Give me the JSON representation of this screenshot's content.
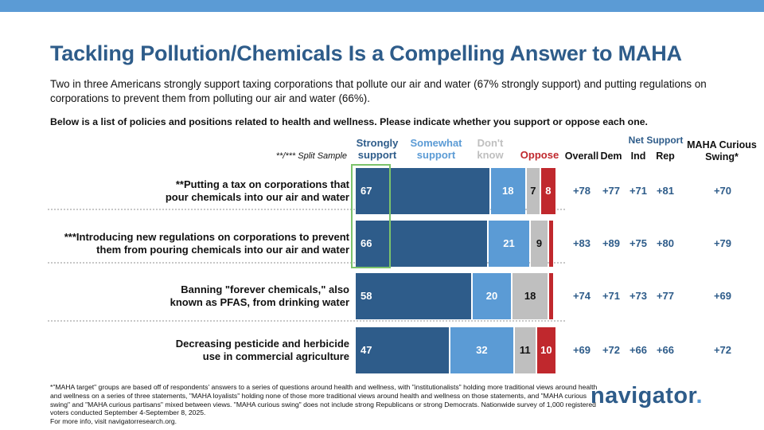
{
  "title": "Tackling Pollution/Chemicals Is a Compelling Answer to MAHA",
  "subtitle": "Two in three Americans strongly support taxing corporations that pollute our air and water (67% strongly support) and putting regulations on corporations to prevent them from polluting our air and water (66%).",
  "question": "Below is a list of policies and positions related to health and wellness. Please indicate whether you support or oppose each one.",
  "split_note": "**/*** Split Sample",
  "colors": {
    "strong": "#2e5c8a",
    "somewhat": "#5b9bd5",
    "dontknow": "#bfbfbf",
    "oppose": "#c0282d",
    "highlight": "#7cc36b"
  },
  "headers": {
    "strong": [
      "Strongly",
      "support"
    ],
    "somewhat": [
      "Somewhat",
      "support"
    ],
    "dontknow": [
      "Don't",
      "know"
    ],
    "oppose": "Oppose",
    "overall": "Overall",
    "dem": "Dem",
    "ind": "Ind",
    "rep": "Rep",
    "net_support": "Net Support",
    "maha_curious": [
      "MAHA Curious",
      "Swing*"
    ]
  },
  "chart_data": {
    "type": "bar",
    "orientation": "horizontal",
    "stacked": true,
    "categories": [
      "**Putting a tax on corporations that pour chemicals into our air and water",
      "***Introducing new regulations on corporations to prevent them from pouring chemicals into our air and water",
      "Banning \"forever chemicals,\" also known as PFAS, from drinking water",
      "Decreasing pesticide and herbicide use in commercial agriculture"
    ],
    "category_lines": [
      [
        "**Putting a tax on corporations that",
        "pour chemicals into our air and water"
      ],
      [
        "***Introducing new regulations on corporations to prevent",
        "them from pouring chemicals into our air and water"
      ],
      [
        "Banning \"forever chemicals,\" also",
        "known as PFAS, from drinking water"
      ],
      [
        "Decreasing pesticide and herbicide",
        "use in commercial agriculture"
      ]
    ],
    "series": [
      {
        "name": "Strongly support",
        "values": [
          67,
          66,
          58,
          47
        ],
        "labels": [
          "67",
          "66",
          "58",
          "47"
        ]
      },
      {
        "name": "Somewhat support",
        "values": [
          18,
          21,
          20,
          32
        ],
        "labels": [
          "18",
          "21",
          "20",
          "32"
        ]
      },
      {
        "name": "Don't know",
        "values": [
          7,
          9,
          18,
          11
        ],
        "labels": [
          "7",
          "9",
          "18",
          "11"
        ]
      },
      {
        "name": "Oppose",
        "values": [
          8,
          3,
          3,
          10
        ],
        "labels": [
          "8",
          "",
          "",
          "10"
        ]
      }
    ],
    "xlim": [
      0,
      100
    ],
    "table": {
      "overall": [
        "+78",
        "+83",
        "+74",
        "+69"
      ],
      "dem": [
        "+77",
        "+89",
        "+71",
        "+72"
      ],
      "ind": [
        "+71",
        "+75",
        "+73",
        "+66"
      ],
      "rep": [
        "+81",
        "+80",
        "+77",
        "+66"
      ],
      "maha_curious_swing": [
        "+70",
        "+79",
        "+69",
        "+72"
      ]
    }
  },
  "footnote": "*\"MAHA target\" groups are based off of respondents' answers to a series of questions around health and wellness, with \"institutionalists\" holding more traditional views around health and wellness on a series of three statements, \"MAHA loyalists\" holding none of those more traditional views around health and wellness on those statements, and \"MAHA curious swing\" and \"MAHA curious partisans\" mixed between views. \"MAHA curious swing\" does not include strong Republicans or strong Democrats. Nationwide survey of 1,000 registered voters conducted September 4-September 8, 2025.",
  "footnote_more": "For more info, visit navigatorresearch.org.",
  "logo": {
    "text": "navigator",
    "dot": "."
  }
}
